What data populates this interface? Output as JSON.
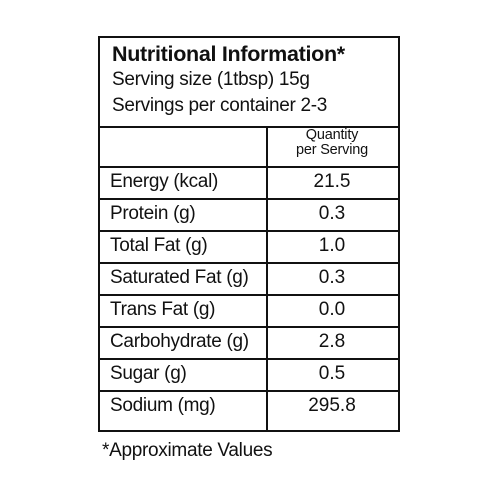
{
  "header": {
    "title": "Nutritional Information*",
    "serving_size": "Serving size (1tbsp) 15g",
    "servings_per_container": "Servings per container 2-3"
  },
  "table": {
    "column_header_line1": "Quantity",
    "column_header_line2": "per Serving",
    "rows": [
      {
        "label": "Energy (kcal)",
        "value": "21.5"
      },
      {
        "label": "Protein (g)",
        "value": "0.3"
      },
      {
        "label": "Total Fat (g)",
        "value": "1.0"
      },
      {
        "label": "Saturated Fat (g)",
        "value": "0.3"
      },
      {
        "label": "Trans Fat (g)",
        "value": "0.0"
      },
      {
        "label": "Carbohydrate (g)",
        "value": "2.8"
      },
      {
        "label": "Sugar (g)",
        "value": "0.5"
      },
      {
        "label": "Sodium (mg)",
        "value": "295.8"
      }
    ]
  },
  "footnote": "*Approximate Values"
}
